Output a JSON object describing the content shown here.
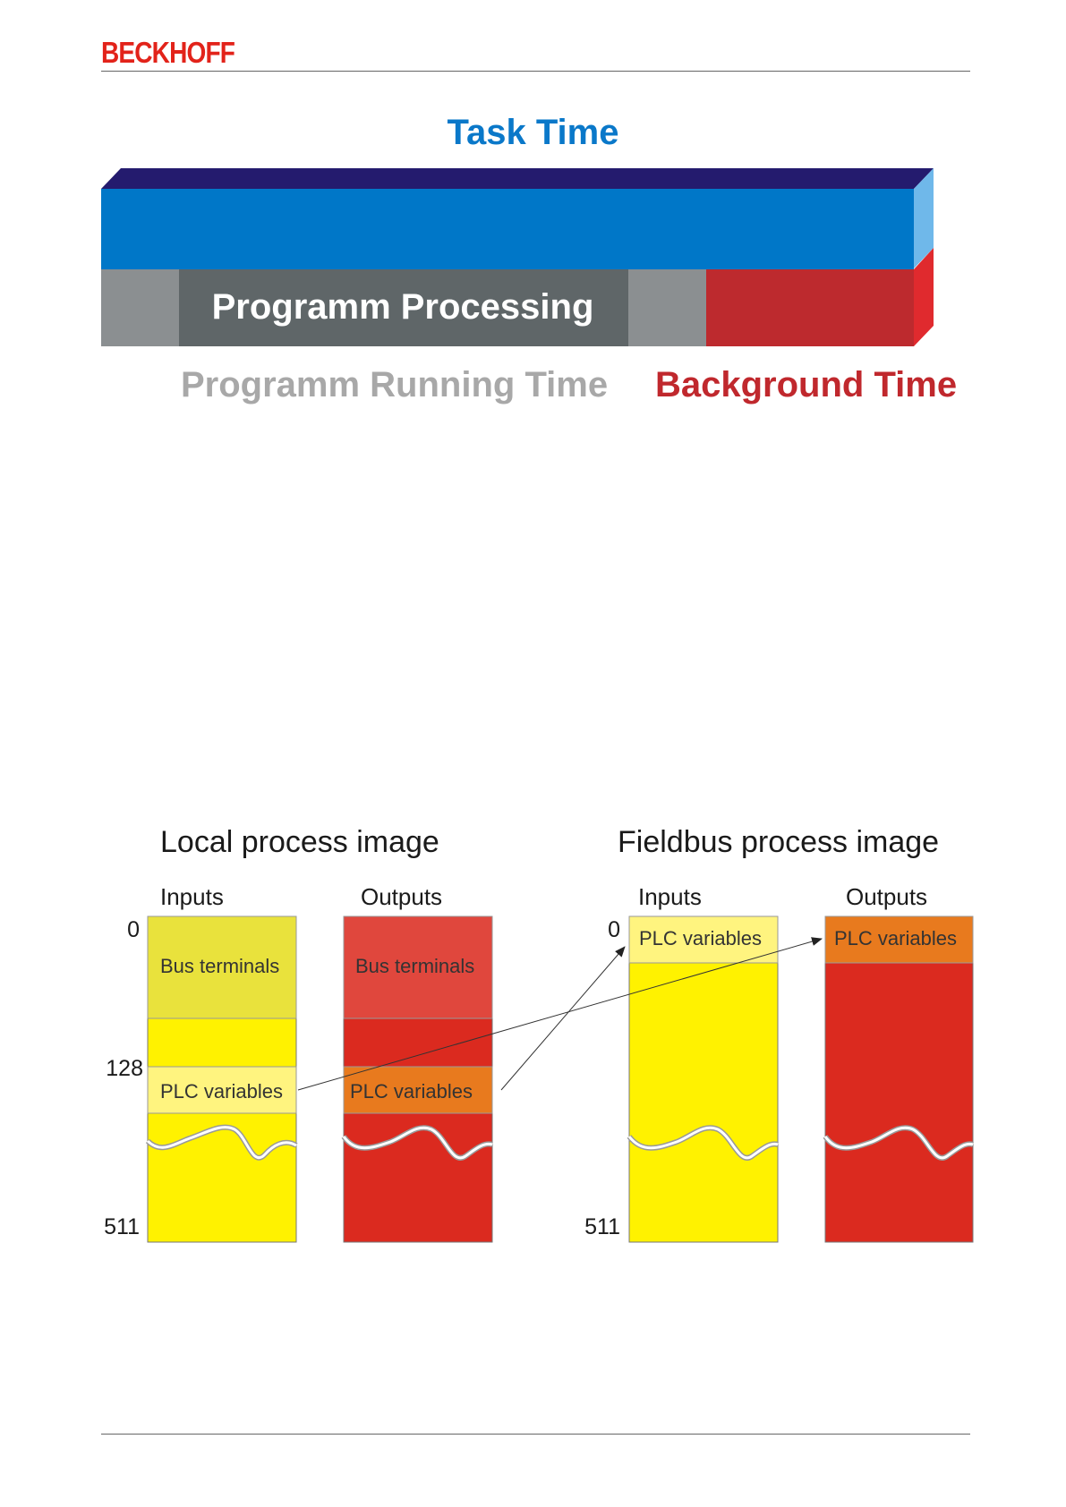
{
  "header": {
    "brand": "BECKHOFF"
  },
  "task_diagram": {
    "title": "Task Time",
    "processing_label": "Programm Processing",
    "running_label": "Programm Running Time",
    "background_label": "Background Time",
    "colors": {
      "task_bar": "#0077c8",
      "task_top": "#241b6e",
      "task_side": "#6fb8ea",
      "gray": "#8b8f91",
      "dark_gray": "#5f6668",
      "background": "#bd2a2e",
      "background_side": "#e02a2e"
    }
  },
  "process_image": {
    "local": {
      "title": "Local process image",
      "inputs_label": "Inputs",
      "outputs_label": "Outputs",
      "addr_start": "0",
      "addr_mid": "128",
      "addr_end": "511",
      "inputs_bus": "Bus terminals",
      "outputs_bus": "Bus terminals",
      "inputs_plc": "PLC variables",
      "outputs_plc": "PLC variables"
    },
    "fieldbus": {
      "title": "Fieldbus process image",
      "inputs_label": "Inputs",
      "outputs_label": "Outputs",
      "addr_start": "0",
      "addr_end": "511",
      "inputs_plc": "PLC variables",
      "outputs_plc": "PLC variables"
    },
    "colors": {
      "yellow": "#fff200",
      "yellow_top": "#e9e23c",
      "yellow_light": "#fff47f",
      "red": "#db2a1f",
      "red_top": "#e0473d",
      "orange": "#e87a1e"
    }
  }
}
